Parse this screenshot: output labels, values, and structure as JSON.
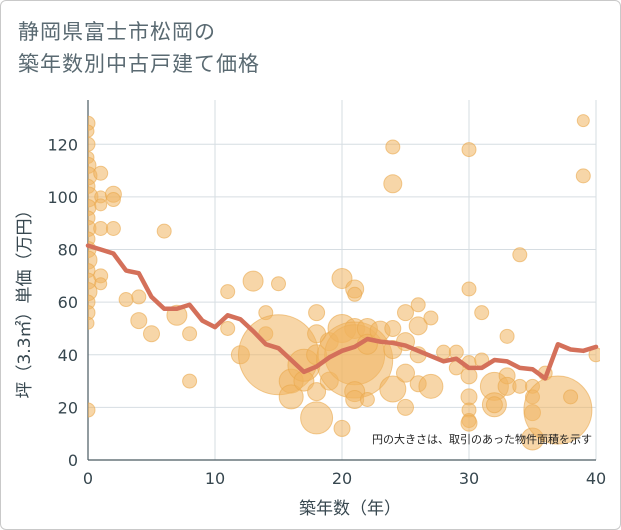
{
  "title_lines": [
    "静岡県富士市松岡の",
    "築年数別中古戸建て価格"
  ],
  "colors": {
    "bubble_fill": "#f0b460",
    "bubble_stroke": "#e9a94c",
    "line": "#d4705a",
    "grid": "#d6dde2",
    "text": "#37474f"
  },
  "chart_data": {
    "type": "scatter",
    "xlabel": "築年数（年）",
    "ylabel": "坪（3.3㎡）単価（万円）",
    "xlim": [
      0,
      40
    ],
    "ylim": [
      0,
      130
    ],
    "x_ticks": [
      0,
      10,
      20,
      30,
      40
    ],
    "y_ticks": [
      0,
      20,
      40,
      60,
      80,
      100,
      120
    ],
    "grid": true,
    "note": "円の大きさは、取引のあった物件面積を示す",
    "bubbles": [
      {
        "x": 0,
        "y": 128,
        "r": 7
      },
      {
        "x": 0,
        "y": 125,
        "r": 6
      },
      {
        "x": 0,
        "y": 120,
        "r": 7
      },
      {
        "x": 0,
        "y": 115,
        "r": 6
      },
      {
        "x": 0,
        "y": 112,
        "r": 8
      },
      {
        "x": 0,
        "y": 108,
        "r": 9
      },
      {
        "x": 0,
        "y": 104,
        "r": 7
      },
      {
        "x": 0,
        "y": 100,
        "r": 10
      },
      {
        "x": 0,
        "y": 96,
        "r": 8
      },
      {
        "x": 0,
        "y": 92,
        "r": 7
      },
      {
        "x": 0,
        "y": 88,
        "r": 8
      },
      {
        "x": 0,
        "y": 84,
        "r": 7
      },
      {
        "x": 0,
        "y": 80,
        "r": 8
      },
      {
        "x": 0,
        "y": 76,
        "r": 9
      },
      {
        "x": 0,
        "y": 72,
        "r": 7
      },
      {
        "x": 0,
        "y": 68,
        "r": 8
      },
      {
        "x": 0,
        "y": 64,
        "r": 9
      },
      {
        "x": 0,
        "y": 60,
        "r": 7
      },
      {
        "x": 0,
        "y": 56,
        "r": 7
      },
      {
        "x": 0,
        "y": 52,
        "r": 6
      },
      {
        "x": 0,
        "y": 19,
        "r": 7
      },
      {
        "x": 1,
        "y": 109,
        "r": 7
      },
      {
        "x": 1,
        "y": 100,
        "r": 6
      },
      {
        "x": 1,
        "y": 97,
        "r": 6
      },
      {
        "x": 1,
        "y": 88,
        "r": 7
      },
      {
        "x": 1,
        "y": 70,
        "r": 7
      },
      {
        "x": 1,
        "y": 67,
        "r": 6
      },
      {
        "x": 2,
        "y": 101,
        "r": 8
      },
      {
        "x": 2,
        "y": 99,
        "r": 7
      },
      {
        "x": 2,
        "y": 88,
        "r": 7
      },
      {
        "x": 3,
        "y": 61,
        "r": 7
      },
      {
        "x": 4,
        "y": 62,
        "r": 7
      },
      {
        "x": 4,
        "y": 53,
        "r": 8
      },
      {
        "x": 5,
        "y": 48,
        "r": 8
      },
      {
        "x": 6,
        "y": 87,
        "r": 7
      },
      {
        "x": 7,
        "y": 55,
        "r": 10
      },
      {
        "x": 8,
        "y": 48,
        "r": 7
      },
      {
        "x": 8,
        "y": 30,
        "r": 7
      },
      {
        "x": 11,
        "y": 64,
        "r": 7
      },
      {
        "x": 11,
        "y": 50,
        "r": 7
      },
      {
        "x": 12,
        "y": 40,
        "r": 9
      },
      {
        "x": 13,
        "y": 68,
        "r": 10
      },
      {
        "x": 14,
        "y": 56,
        "r": 7
      },
      {
        "x": 14,
        "y": 48,
        "r": 7
      },
      {
        "x": 15,
        "y": 67,
        "r": 7
      },
      {
        "x": 15,
        "y": 40,
        "r": 40
      },
      {
        "x": 16,
        "y": 30,
        "r": 12
      },
      {
        "x": 16,
        "y": 24,
        "r": 12
      },
      {
        "x": 17,
        "y": 36,
        "r": 16
      },
      {
        "x": 17,
        "y": 30,
        "r": 10
      },
      {
        "x": 18,
        "y": 56,
        "r": 8
      },
      {
        "x": 18,
        "y": 48,
        "r": 9
      },
      {
        "x": 18,
        "y": 40,
        "r": 10
      },
      {
        "x": 18,
        "y": 26,
        "r": 9
      },
      {
        "x": 18,
        "y": 16,
        "r": 16
      },
      {
        "x": 19,
        "y": 30,
        "r": 9
      },
      {
        "x": 19,
        "y": 45,
        "r": 9
      },
      {
        "x": 20,
        "y": 69,
        "r": 10
      },
      {
        "x": 20,
        "y": 50,
        "r": 14
      },
      {
        "x": 20,
        "y": 12,
        "r": 8
      },
      {
        "x": 21,
        "y": 65,
        "r": 9
      },
      {
        "x": 21,
        "y": 63,
        "r": 7
      },
      {
        "x": 21,
        "y": 50,
        "r": 10
      },
      {
        "x": 21,
        "y": 40,
        "r": 30
      },
      {
        "x": 21,
        "y": 38,
        "r": 38
      },
      {
        "x": 21,
        "y": 26,
        "r": 10
      },
      {
        "x": 21,
        "y": 23,
        "r": 9
      },
      {
        "x": 22,
        "y": 50,
        "r": 10
      },
      {
        "x": 22,
        "y": 44,
        "r": 10
      },
      {
        "x": 22,
        "y": 23,
        "r": 7
      },
      {
        "x": 23,
        "y": 49,
        "r": 10
      },
      {
        "x": 24,
        "y": 119,
        "r": 7
      },
      {
        "x": 24,
        "y": 105,
        "r": 9
      },
      {
        "x": 24,
        "y": 50,
        "r": 8
      },
      {
        "x": 24,
        "y": 42,
        "r": 9
      },
      {
        "x": 24,
        "y": 27,
        "r": 13
      },
      {
        "x": 25,
        "y": 56,
        "r": 8
      },
      {
        "x": 25,
        "y": 45,
        "r": 9
      },
      {
        "x": 25,
        "y": 33,
        "r": 9
      },
      {
        "x": 25,
        "y": 20,
        "r": 8
      },
      {
        "x": 26,
        "y": 59,
        "r": 7
      },
      {
        "x": 26,
        "y": 51,
        "r": 9
      },
      {
        "x": 26,
        "y": 40,
        "r": 8
      },
      {
        "x": 26,
        "y": 29,
        "r": 8
      },
      {
        "x": 27,
        "y": 54,
        "r": 7
      },
      {
        "x": 27,
        "y": 28,
        "r": 12
      },
      {
        "x": 28,
        "y": 41,
        "r": 7
      },
      {
        "x": 29,
        "y": 41,
        "r": 7
      },
      {
        "x": 29,
        "y": 35,
        "r": 7
      },
      {
        "x": 30,
        "y": 118,
        "r": 7
      },
      {
        "x": 30,
        "y": 65,
        "r": 7
      },
      {
        "x": 30,
        "y": 37,
        "r": 7
      },
      {
        "x": 30,
        "y": 32,
        "r": 8
      },
      {
        "x": 30,
        "y": 24,
        "r": 8
      },
      {
        "x": 30,
        "y": 19,
        "r": 7
      },
      {
        "x": 30,
        "y": 15,
        "r": 7
      },
      {
        "x": 30,
        "y": 14,
        "r": 8
      },
      {
        "x": 31,
        "y": 56,
        "r": 7
      },
      {
        "x": 31,
        "y": 38,
        "r": 7
      },
      {
        "x": 32,
        "y": 28,
        "r": 14
      },
      {
        "x": 32,
        "y": 21,
        "r": 12
      },
      {
        "x": 32,
        "y": 21,
        "r": 8
      },
      {
        "x": 33,
        "y": 47,
        "r": 7
      },
      {
        "x": 33,
        "y": 32,
        "r": 8
      },
      {
        "x": 33,
        "y": 28,
        "r": 9
      },
      {
        "x": 34,
        "y": 78,
        "r": 7
      },
      {
        "x": 34,
        "y": 28,
        "r": 7
      },
      {
        "x": 35,
        "y": 28,
        "r": 7
      },
      {
        "x": 35,
        "y": 24,
        "r": 7
      },
      {
        "x": 35,
        "y": 18,
        "r": 8
      },
      {
        "x": 35,
        "y": 8,
        "r": 11
      },
      {
        "x": 36,
        "y": 33,
        "r": 7
      },
      {
        "x": 37,
        "y": 19,
        "r": 34
      },
      {
        "x": 38,
        "y": 24,
        "r": 7
      },
      {
        "x": 39,
        "y": 129,
        "r": 6
      },
      {
        "x": 39,
        "y": 108,
        "r": 7
      },
      {
        "x": 40,
        "y": 40,
        "r": 7
      }
    ],
    "series": [
      {
        "x": [
          0,
          1,
          2,
          3,
          4,
          5,
          6,
          7,
          8,
          9,
          10,
          11,
          12,
          13,
          14,
          15,
          16,
          17,
          18,
          19,
          20,
          21,
          22,
          23,
          24,
          25,
          26,
          27,
          28,
          29,
          30,
          31,
          32,
          33,
          34,
          35,
          36,
          37,
          38,
          39,
          40
        ],
        "values": [
          81.5,
          80,
          78.5,
          72,
          71,
          62,
          57.5,
          57.5,
          59,
          53,
          50.5,
          55,
          53.5,
          49,
          44,
          42.5,
          38,
          33.5,
          35.5,
          39,
          41.5,
          43,
          46,
          45,
          44.5,
          43.5,
          41.5,
          39.5,
          37.5,
          38.5,
          35,
          35,
          38,
          37.5,
          35,
          34.5,
          31,
          44,
          42,
          41.5,
          43
        ]
      }
    ]
  }
}
